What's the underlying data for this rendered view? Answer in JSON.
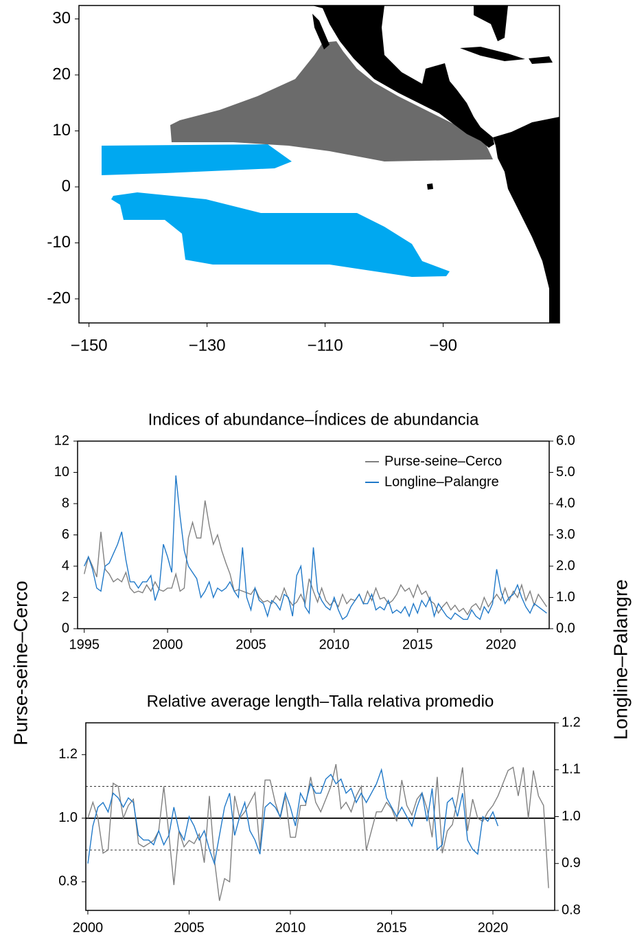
{
  "chart_data": [
    {
      "type": "map",
      "xlim": [
        -151.7,
        -70.3
      ],
      "ylim": [
        -24.3,
        32.4
      ],
      "xticks": [
        {
          "value": -150,
          "label": "−150"
        },
        {
          "value": -130,
          "label": "−130"
        },
        {
          "value": -110,
          "label": "−110"
        },
        {
          "value": -90,
          "label": "−90"
        }
      ],
      "yticks": [
        -20,
        -10,
        0,
        10,
        20,
        30
      ]
    },
    {
      "type": "line",
      "title": "Indices of abundance–Índices de abundancia",
      "ylabel": "Purse-seine–Cerco",
      "y2label": "Longline–Palangre",
      "legend": "upper right",
      "xlim": [
        1994.6,
        2022.9
      ],
      "ylim": [
        0,
        12
      ],
      "y2lim": [
        0,
        6
      ],
      "xticks": [
        1995,
        2000,
        2005,
        2010,
        2015,
        2020
      ],
      "yticks": [
        0,
        2,
        4,
        6,
        8,
        10,
        12
      ],
      "y2ticks": [
        {
          "value": 0,
          "label": "0.0"
        },
        {
          "value": 1,
          "label": "1.0"
        },
        {
          "value": 2,
          "label": "2.0"
        },
        {
          "value": 3,
          "label": "3.0"
        },
        {
          "value": 4,
          "label": "4.0"
        },
        {
          "value": 5,
          "label": "5.0"
        },
        {
          "value": 6,
          "label": "6.0"
        }
      ],
      "x": [
        1995,
        1995.25,
        1995.5,
        1995.75,
        1996,
        1996.25,
        1996.5,
        1996.75,
        1997,
        1997.25,
        1997.5,
        1997.75,
        1998,
        1998.25,
        1998.5,
        1998.75,
        1999,
        1999.25,
        1999.5,
        1999.75,
        2000,
        2000.25,
        2000.5,
        2000.75,
        2001,
        2001.25,
        2001.5,
        2001.75,
        2002,
        2002.25,
        2002.5,
        2002.75,
        2003,
        2003.25,
        2003.5,
        2003.75,
        2004,
        2004.25,
        2004.5,
        2004.75,
        2005,
        2005.25,
        2005.5,
        2005.75,
        2006,
        2006.25,
        2006.5,
        2006.75,
        2007,
        2007.25,
        2007.5,
        2007.75,
        2008,
        2008.25,
        2008.5,
        2008.75,
        2009,
        2009.25,
        2009.5,
        2009.75,
        2010,
        2010.25,
        2010.5,
        2010.75,
        2011,
        2011.25,
        2011.5,
        2011.75,
        2012,
        2012.25,
        2012.5,
        2012.75,
        2013,
        2013.25,
        2013.5,
        2013.75,
        2014,
        2014.25,
        2014.5,
        2014.75,
        2015,
        2015.25,
        2015.5,
        2015.75,
        2016,
        2016.25,
        2016.5,
        2016.75,
        2017,
        2017.25,
        2017.5,
        2017.75,
        2018,
        2018.25,
        2018.5,
        2018.75,
        2019,
        2019.25,
        2019.5,
        2019.75,
        2020,
        2020.25,
        2020.5,
        2020.75,
        2021,
        2021.25,
        2021.5,
        2021.75,
        2022,
        2022.25,
        2022.5,
        2022.75
      ],
      "series": [
        {
          "name": "Purse-seine–Cerco",
          "color": "#808080",
          "axis": "y",
          "values": [
            3.5,
            4.6,
            4.0,
            3.3,
            6.2,
            3.8,
            3.5,
            3.0,
            3.2,
            3.0,
            3.6,
            2.6,
            2.3,
            2.4,
            2.3,
            2.8,
            2.4,
            3.0,
            2.5,
            2.4,
            2.6,
            2.6,
            3.5,
            2.4,
            2.6,
            5.8,
            6.8,
            5.8,
            5.8,
            8.2,
            6.6,
            5.4,
            6.0,
            5.0,
            4.2,
            3.5,
            2.4,
            2.5,
            2.4,
            2.3,
            2.2,
            2.6,
            2.0,
            1.7,
            1.8,
            1.6,
            2.1,
            1.8,
            2.6,
            1.9,
            1.5,
            1.7,
            2.2,
            1.6,
            3.2,
            2.4,
            1.7,
            2.6,
            1.8,
            1.5,
            1.8,
            1.4,
            2.2,
            1.6,
            1.9,
            1.8,
            2.2,
            1.6,
            2.4,
            1.8,
            2.6,
            1.9,
            2.0,
            1.6,
            1.8,
            2.2,
            2.8,
            2.4,
            2.6,
            2.0,
            2.8,
            2.2,
            2.4,
            1.8,
            1.6,
            1.0,
            1.4,
            1.7,
            1.2,
            1.5,
            1.1,
            1.3,
            0.9,
            1.4,
            1.6,
            1.2,
            2.0,
            1.4,
            1.8,
            2.2,
            1.8,
            2.6,
            1.8,
            2.4,
            2.0,
            2.8,
            1.8,
            2.4,
            1.5,
            2.2,
            1.8,
            1.4
          ]
        },
        {
          "name": "Longline–Palangre",
          "color": "#1f78c8",
          "axis": "y2",
          "values": [
            2.0,
            2.3,
            1.9,
            1.3,
            1.2,
            2.0,
            2.1,
            2.4,
            2.7,
            3.1,
            2.2,
            1.5,
            1.5,
            1.3,
            1.5,
            1.5,
            1.7,
            0.9,
            1.3,
            2.7,
            2.3,
            1.8,
            4.9,
            3.6,
            2.5,
            2.0,
            1.8,
            1.6,
            1.0,
            1.2,
            1.5,
            1.0,
            1.3,
            1.2,
            1.3,
            1.5,
            1.2,
            1.0,
            2.6,
            1.0,
            0.6,
            1.3,
            0.9,
            0.8,
            0.4,
            0.9,
            0.8,
            0.6,
            1.1,
            1.0,
            0.4,
            1.7,
            2.0,
            0.7,
            0.5,
            2.6,
            1.2,
            0.9,
            0.7,
            0.6,
            1.0,
            0.6,
            0.3,
            0.4,
            0.7,
            0.9,
            1.1,
            0.8,
            0.8,
            1.1,
            0.6,
            0.7,
            0.6,
            0.9,
            0.5,
            0.6,
            0.5,
            0.7,
            0.4,
            0.8,
            0.5,
            0.9,
            0.7,
            1.0,
            0.4,
            0.8,
            0.6,
            0.4,
            0.3,
            0.5,
            0.4,
            0.3,
            0.3,
            0.6,
            0.4,
            0.3,
            0.7,
            0.5,
            0.8,
            1.9,
            1.2,
            0.8,
            1.0,
            1.1,
            1.4,
            1.0,
            0.7,
            0.5,
            0.8,
            0.7,
            0.6,
            0.5
          ]
        }
      ]
    },
    {
      "type": "line",
      "title": "Relative average length–Talla relativa promedio",
      "xlim": [
        1999.9,
        2023.05
      ],
      "ylim": [
        0.71,
        1.3
      ],
      "y2lim": [
        0.8,
        1.2
      ],
      "xticks": [
        2000,
        2005,
        2010,
        2015,
        2020
      ],
      "yticks": [
        {
          "value": 0.8,
          "label": "0.8"
        },
        {
          "value": 1.0,
          "label": "1.0"
        },
        {
          "value": 1.2,
          "label": "1.2"
        }
      ],
      "y2ticks": [
        {
          "value": 0.8,
          "label": "0.8"
        },
        {
          "value": 0.9,
          "label": "0.9"
        },
        {
          "value": 1.0,
          "label": "1.0"
        },
        {
          "value": 1.1,
          "label": "1.1"
        },
        {
          "value": 1.2,
          "label": "1.2"
        }
      ],
      "reference_lines": [
        {
          "value": 0.9,
          "style": "dashed"
        },
        {
          "value": 1.0,
          "style": "solid"
        },
        {
          "value": 1.1,
          "style": "dashed"
        }
      ],
      "x": [
        2000,
        2000.25,
        2000.5,
        2000.75,
        2001,
        2001.25,
        2001.5,
        2001.75,
        2002,
        2002.25,
        2002.5,
        2002.75,
        2003,
        2003.25,
        2003.5,
        2003.75,
        2004,
        2004.25,
        2004.5,
        2004.75,
        2005,
        2005.25,
        2005.5,
        2005.75,
        2006,
        2006.25,
        2006.5,
        2006.75,
        2007,
        2007.25,
        2007.5,
        2007.75,
        2008,
        2008.25,
        2008.5,
        2008.75,
        2009,
        2009.25,
        2009.5,
        2009.75,
        2010,
        2010.25,
        2010.5,
        2010.75,
        2011,
        2011.25,
        2011.5,
        2011.75,
        2012,
        2012.25,
        2012.5,
        2012.75,
        2013,
        2013.25,
        2013.5,
        2013.75,
        2014,
        2014.25,
        2014.5,
        2014.75,
        2015,
        2015.25,
        2015.5,
        2015.75,
        2016,
        2016.25,
        2016.5,
        2016.75,
        2017,
        2017.25,
        2017.5,
        2017.75,
        2018,
        2018.25,
        2018.5,
        2018.75,
        2019,
        2019.25,
        2019.5,
        2019.75,
        2020,
        2020.25,
        2020.5,
        2020.75,
        2021,
        2021.25,
        2021.5,
        2021.75,
        2022,
        2022.25,
        2022.5,
        2022.75
      ],
      "series": [
        {
          "name": "Purse-seine–Cerco",
          "color": "#808080",
          "axis": "y",
          "values": [
            1.0,
            1.05,
            1.0,
            0.89,
            0.9,
            1.11,
            1.1,
            1.0,
            1.04,
            1.06,
            0.92,
            0.91,
            0.92,
            0.93,
            0.96,
            1.1,
            0.95,
            0.79,
            0.96,
            0.91,
            0.93,
            0.92,
            0.95,
            0.86,
            1.07,
            0.87,
            0.74,
            0.81,
            0.8,
            1.07,
            1.0,
            1.02,
            1.05,
            1.08,
            0.9,
            1.12,
            1.12,
            1.05,
            1.0,
            1.07,
            0.94,
            0.94,
            1.04,
            1.04,
            1.13,
            1.05,
            1.02,
            1.06,
            1.1,
            1.17,
            1.03,
            1.05,
            1.02,
            1.07,
            1.1,
            0.9,
            0.96,
            1.02,
            1.02,
            1.05,
            1.03,
            0.99,
            1.12,
            1.04,
            1.01,
            1.06,
            1.08,
            1.03,
            0.94,
            1.13,
            0.89,
            0.96,
            0.98,
            1.06,
            1.16,
            0.96,
            1.06,
            1.0,
            0.99,
            1.02,
            1.04,
            1.07,
            1.11,
            1.15,
            1.16,
            1.07,
            1.16,
            1.0,
            1.15,
            1.07,
            1.04,
            0.78
          ]
        },
        {
          "name": "Longline–Palangre",
          "color": "#1f78c8",
          "axis": "y2",
          "values": [
            0.9,
            0.98,
            1.02,
            1.03,
            1.01,
            1.05,
            1.04,
            1.02,
            1.04,
            1.03,
            0.96,
            0.95,
            0.95,
            0.94,
            0.97,
            0.94,
            0.96,
            1.02,
            0.97,
            0.95,
            1.0,
            0.98,
            0.95,
            0.97,
            0.93,
            0.9,
            0.96,
            1.02,
            1.05,
            0.96,
            1.0,
            1.03,
            0.97,
            0.95,
            0.92,
            1.02,
            1.03,
            1.02,
            1.0,
            1.05,
            1.02,
            0.98,
            1.05,
            1.03,
            1.07,
            1.05,
            1.05,
            1.08,
            1.09,
            1.07,
            1.08,
            1.05,
            1.06,
            1.03,
            1.05,
            1.03,
            1.05,
            1.07,
            1.1,
            1.04,
            1.02,
            1.0,
            1.02,
            1.0,
            0.98,
            1.02,
            1.05,
            0.99,
            1.06,
            0.93,
            0.94,
            1.03,
            1.04,
            1.0,
            1.05,
            0.95,
            0.93,
            0.92,
            1.0,
            0.99,
            1.01,
            0.98,
            null,
            null,
            null,
            null,
            null,
            null,
            null,
            null,
            null,
            null
          ]
        }
      ]
    }
  ]
}
